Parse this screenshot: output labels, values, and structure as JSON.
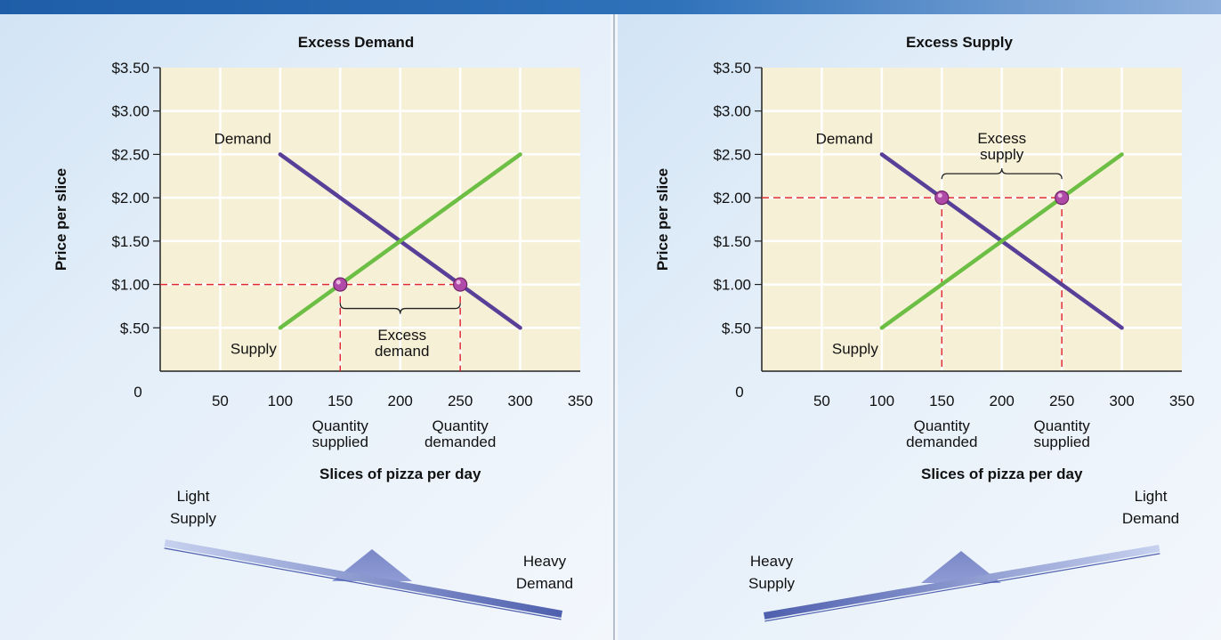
{
  "chart_data": [
    {
      "type": "line",
      "title": "Excess Demand",
      "xlabel": "Slices of pizza per day",
      "ylabel": "Price per slice",
      "xlim": [
        0,
        350
      ],
      "ylim": [
        0,
        3.5
      ],
      "origin_label": "0",
      "x_ticks": [
        50,
        100,
        150,
        200,
        250,
        300,
        350
      ],
      "x_tick_labels": [
        "50",
        "100",
        "150",
        "200",
        "250",
        "300",
        "350"
      ],
      "y_ticks": [
        0.5,
        1.0,
        1.5,
        2.0,
        2.5,
        3.0,
        3.5
      ],
      "y_tick_labels": [
        "$.50",
        "$1.00",
        "$1.50",
        "$2.00",
        "$2.50",
        "$3.00",
        "$3.50"
      ],
      "grid": true,
      "series": [
        {
          "name": "Demand",
          "color": "#5a3f99",
          "points": [
            [
              100,
              2.5
            ],
            [
              300,
              0.5
            ]
          ]
        },
        {
          "name": "Supply",
          "color": "#6cbf44",
          "points": [
            [
              100,
              0.5
            ],
            [
              300,
              2.5
            ]
          ]
        }
      ],
      "market_price": 1.0,
      "markers": [
        {
          "x": 150,
          "y": 1.0,
          "label": [
            "Quantity",
            "supplied"
          ]
        },
        {
          "x": 250,
          "y": 1.0,
          "label": [
            "Quantity",
            "demanded"
          ]
        }
      ],
      "gap": {
        "text": [
          "Excess",
          "demand"
        ],
        "from": 150,
        "to": 250,
        "side": "below"
      },
      "seesaw": {
        "light_label": [
          "Light",
          "Supply"
        ],
        "heavy_label": [
          "Heavy",
          "Demand"
        ],
        "heavy_side": "right"
      }
    },
    {
      "type": "line",
      "title": "Excess Supply",
      "xlabel": "Slices of pizza per day",
      "ylabel": "Price per slice",
      "xlim": [
        0,
        350
      ],
      "ylim": [
        0,
        3.5
      ],
      "origin_label": "0",
      "x_ticks": [
        50,
        100,
        150,
        200,
        250,
        300,
        350
      ],
      "x_tick_labels": [
        "50",
        "100",
        "150",
        "200",
        "250",
        "300",
        "350"
      ],
      "y_ticks": [
        0.5,
        1.0,
        1.5,
        2.0,
        2.5,
        3.0,
        3.5
      ],
      "y_tick_labels": [
        "$.50",
        "$1.00",
        "$1.50",
        "$2.00",
        "$2.50",
        "$3.00",
        "$3.50"
      ],
      "grid": true,
      "series": [
        {
          "name": "Demand",
          "color": "#5a3f99",
          "points": [
            [
              100,
              2.5
            ],
            [
              300,
              0.5
            ]
          ]
        },
        {
          "name": "Supply",
          "color": "#6cbf44",
          "points": [
            [
              100,
              0.5
            ],
            [
              300,
              2.5
            ]
          ]
        }
      ],
      "market_price": 2.0,
      "markers": [
        {
          "x": 150,
          "y": 2.0,
          "label": [
            "Quantity",
            "demanded"
          ]
        },
        {
          "x": 250,
          "y": 2.0,
          "label": [
            "Quantity",
            "supplied"
          ]
        }
      ],
      "gap": {
        "text": [
          "Excess",
          "supply"
        ],
        "from": 150,
        "to": 250,
        "side": "above"
      },
      "seesaw": {
        "light_label": [
          "Light",
          "Demand"
        ],
        "heavy_label": [
          "Heavy",
          "Supply"
        ],
        "heavy_side": "left"
      }
    }
  ]
}
